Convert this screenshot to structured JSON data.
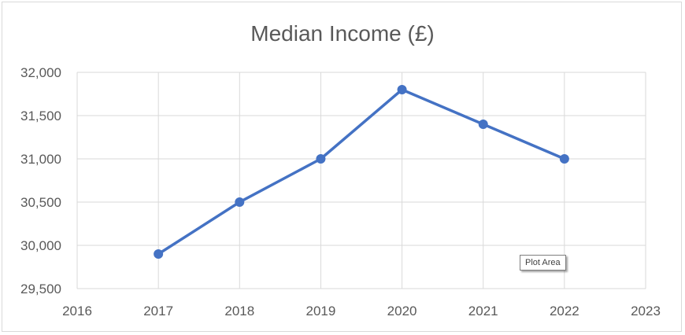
{
  "chart_data": {
    "type": "scatter",
    "title": "Median Income (£)",
    "xlabel": "",
    "ylabel": "",
    "xlim": [
      2016,
      2023
    ],
    "ylim": [
      29500,
      32000
    ],
    "x_ticks": [
      2016,
      2017,
      2018,
      2019,
      2020,
      2021,
      2022,
      2023
    ],
    "y_ticks": [
      29500,
      30000,
      30500,
      31000,
      31500,
      32000
    ],
    "y_tick_labels": [
      "29,500",
      "30,000",
      "30,500",
      "31,000",
      "31,500",
      "32,000"
    ],
    "grid": true,
    "legend": "none",
    "series": [
      {
        "x": [
          2017,
          2018,
          2019,
          2020,
          2021,
          2022
        ],
        "y": [
          29900,
          30500,
          31000,
          31800,
          31400,
          31000
        ],
        "color": "#4472c4",
        "markers": true,
        "lines": true
      }
    ]
  },
  "tooltip": {
    "text": "Plot Area"
  }
}
